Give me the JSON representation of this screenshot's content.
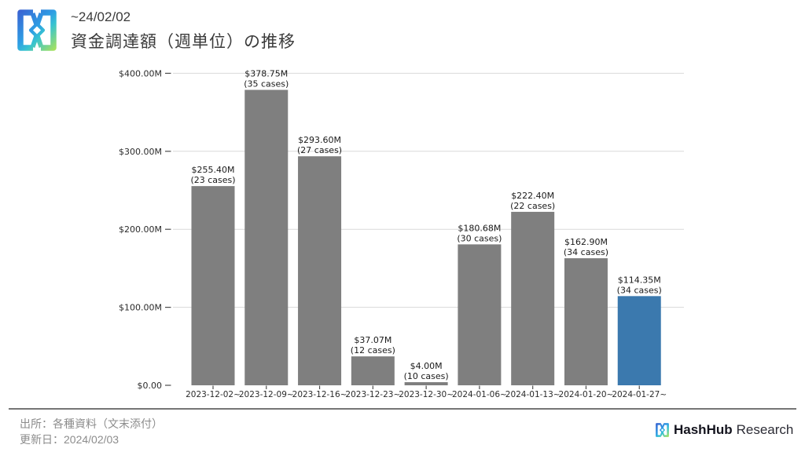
{
  "header": {
    "period": "~24/02/02",
    "title": "資金調達額（週単位）の推移"
  },
  "footer": {
    "source": "出所：各種資料（文末添付）",
    "updated": "更新日：2024/02/03",
    "brand_bold": "HashHub",
    "brand_regular": "Research"
  },
  "chart_data": {
    "type": "bar",
    "title": "資金調達額（週単位）の推移",
    "categories": [
      "2023-12-02~",
      "2023-12-09~",
      "2023-12-16~",
      "2023-12-23~",
      "2023-12-30~",
      "2024-01-06~",
      "2024-01-13~",
      "2024-01-20~",
      "2024-01-27~"
    ],
    "values": [
      255.4,
      378.75,
      293.6,
      37.07,
      4.0,
      180.68,
      222.4,
      162.9,
      114.35
    ],
    "cases": [
      23,
      35,
      27,
      12,
      10,
      30,
      22,
      34,
      34
    ],
    "value_labels": [
      "$255.40M",
      "$378.75M",
      "$293.60M",
      "$37.07M",
      "$4.00M",
      "$180.68M",
      "$222.40M",
      "$162.90M",
      "$114.35M"
    ],
    "cases_labels": [
      "(23 cases)",
      "(35 cases)",
      "(27 cases)",
      "(12 cases)",
      "(10 cases)",
      "(30 cases)",
      "(22 cases)",
      "(34 cases)",
      "(34 cases)"
    ],
    "y_tick_labels": [
      "$0.00",
      "$100.00M",
      "$200.00M",
      "$300.00M",
      "$400.00M"
    ],
    "ylim": [
      0,
      400
    ],
    "grid": true,
    "xlabel": "",
    "ylabel": "",
    "bar_color_default": "#7f7f7f",
    "bar_color_highlight": "#3b79ae",
    "highlight_index": 8,
    "grid_color": "#d9d9d9",
    "label_color": "#1a1a1a",
    "tick_color": "#2b2b2b"
  }
}
